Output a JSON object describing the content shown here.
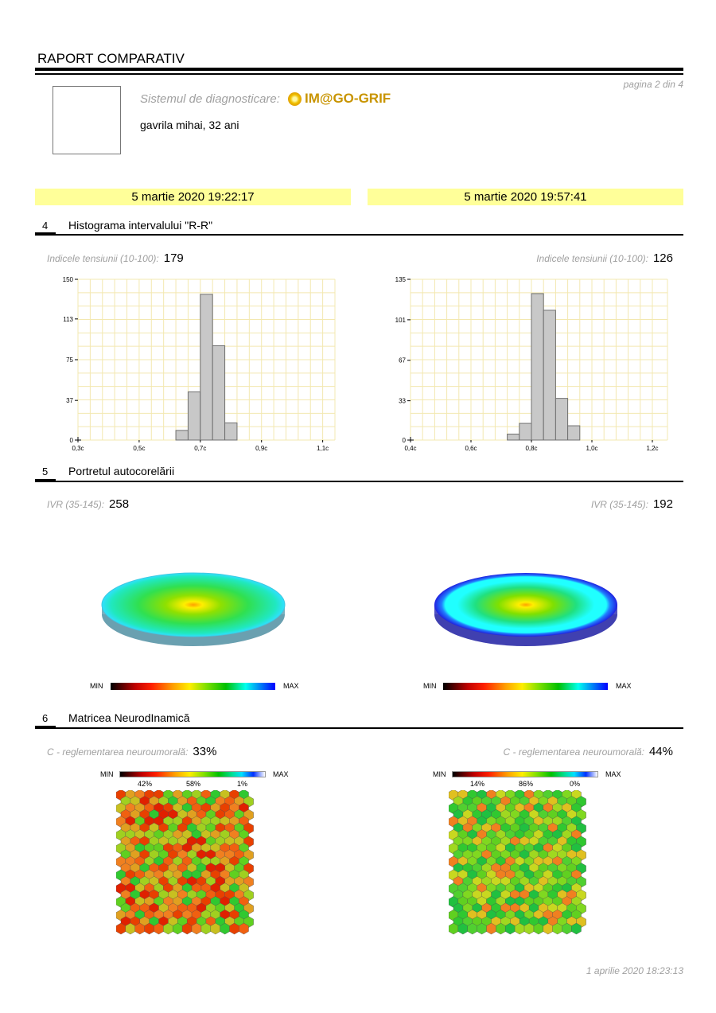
{
  "header": {
    "title": "RAPORT COMPARATIV",
    "page": "pagina 2 din 4",
    "system_label": "Sistemul de diagnosticare:",
    "logo": "IM@GO-GRIF",
    "patient": "gavrila mihai, 32 ani"
  },
  "sessions": [
    "5 martie 2020 19:22:17",
    "5 martie 2020 19:57:41"
  ],
  "sections": [
    {
      "num": "4",
      "title": "Histograma intervalului \"R-R\"",
      "index_label": "Indicele tensiunii (10-100):",
      "values": [
        "179",
        "126"
      ]
    },
    {
      "num": "5",
      "title": "Portretul autocorelării",
      "index_label": "IVR (35-145):",
      "values": [
        "258",
        "192"
      ]
    },
    {
      "num": "6",
      "title": "Matricea NeurodInamică",
      "index_label": "C - reglementarea neuroumorală:",
      "values": [
        "33%",
        "44%"
      ]
    }
  ],
  "colorbar": {
    "min": "MIN",
    "max": "MAX"
  },
  "matrix_percents": [
    [
      "42%",
      "58%",
      "1%"
    ],
    [
      "14%",
      "86%",
      "0%"
    ]
  ],
  "chart_data": [
    {
      "type": "bar",
      "title": "Histograma intervalului R-R (1)",
      "ylim": [
        0,
        150
      ],
      "yticks": [
        "0",
        "37",
        "75",
        "113",
        "150"
      ],
      "ytick_values": [
        0,
        37,
        75,
        113,
        150
      ],
      "xlim": [
        0.3,
        1.14
      ],
      "xticks": [
        "0,3c",
        "0,5c",
        "0,7c",
        "0,9c",
        "1,1c"
      ],
      "xtick_values": [
        0.3,
        0.5,
        0.7,
        0.9,
        1.1
      ],
      "bin_width": 0.04,
      "bins": [
        0.62,
        0.66,
        0.7,
        0.74,
        0.78
      ],
      "values": [
        9,
        45,
        136,
        88,
        16
      ]
    },
    {
      "type": "bar",
      "title": "Histograma intervalului R-R (2)",
      "ylim": [
        0,
        135
      ],
      "yticks": [
        "0",
        "33",
        "67",
        "101",
        "135"
      ],
      "ytick_values": [
        0,
        33,
        67,
        101,
        135
      ],
      "xlim": [
        0.4,
        1.25
      ],
      "xticks": [
        "0,4c",
        "0,6c",
        "0,8c",
        "1,0c",
        "1,2c"
      ],
      "xtick_values": [
        0.4,
        0.6,
        0.8,
        1.0,
        1.2
      ],
      "bin_width": 0.04,
      "bins": [
        0.72,
        0.76,
        0.8,
        0.84,
        0.88,
        0.92
      ],
      "values": [
        5,
        14,
        123,
        109,
        35,
        12
      ]
    }
  ],
  "footer": {
    "date": "1 aprilie 2020 18:23:13"
  }
}
